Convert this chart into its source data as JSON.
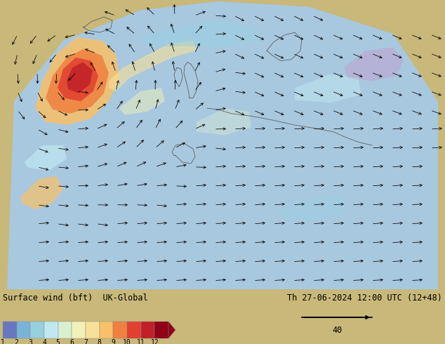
{
  "title_left": "Surface wind (bft)  UK-Global",
  "title_right": "Th 27-06-2024 12:00 UTC (12+48)",
  "scale_label": "40",
  "colorbar_labels": [
    "1",
    "2",
    "3",
    "4",
    "5",
    "6",
    "7",
    "8",
    "9",
    "10",
    "11",
    "12"
  ],
  "colorbar_colors": [
    "#6878c0",
    "#78b4d8",
    "#98d0e0",
    "#c0e8f0",
    "#d8f0d0",
    "#f0f0b8",
    "#f8e098",
    "#f8c068",
    "#f08040",
    "#e04030",
    "#c02028",
    "#900018"
  ],
  "bg_color": "#c8b87a",
  "sea_color": "#a8c8e0",
  "land_color": "#c8b87a",
  "legend_bg": "#ffffff",
  "fig_width": 6.34,
  "fig_height": 4.9,
  "dpi": 100
}
